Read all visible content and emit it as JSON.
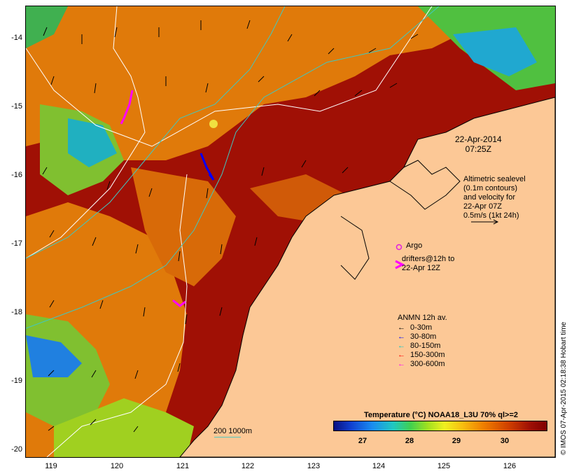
{
  "map": {
    "date": "22-Apr-2014",
    "time": "07:25Z",
    "altimetry_lines": [
      "Altimetric sealevel",
      "(0.1m contours)",
      "and velocity for",
      "22-Apr 07Z",
      "0.5m/s (1kt 24h)"
    ],
    "argo_label": "Argo",
    "drifters_lines": [
      "drifters@12h to",
      "22-Apr 12Z"
    ],
    "anmn": {
      "title": "ANMN 12h av.",
      "items": [
        {
          "label": "0-30m",
          "color": "#000000"
        },
        {
          "label": "30-80m",
          "color": "#0000ff"
        },
        {
          "label": "80-150m",
          "color": "#00c8c8"
        },
        {
          "label": "150-300m",
          "color": "#ff0000"
        },
        {
          "label": "300-600m",
          "color": "#ff00ff"
        }
      ]
    },
    "colorbar": {
      "title": "Temperature (°C) NOAA18_L3U 70% ql>=2",
      "ticks": [
        "27",
        "28",
        "29",
        "30"
      ]
    },
    "scale_label": "200  1000m",
    "credit": "© IMOS 07-Apr-2015 02:18:38 Hobart time",
    "lat_ticks": [
      "-14",
      "-15",
      "-16",
      "-17",
      "-18",
      "-19",
      "-20"
    ],
    "lon_ticks": [
      "119",
      "120",
      "121",
      "122",
      "123",
      "124",
      "125",
      "126"
    ],
    "colors": {
      "land": "#fcc896",
      "sst_warm": "#a01005",
      "sst_mid": "#e07008",
      "contour": "#ffffff",
      "isobath": "#40c8c0"
    }
  }
}
